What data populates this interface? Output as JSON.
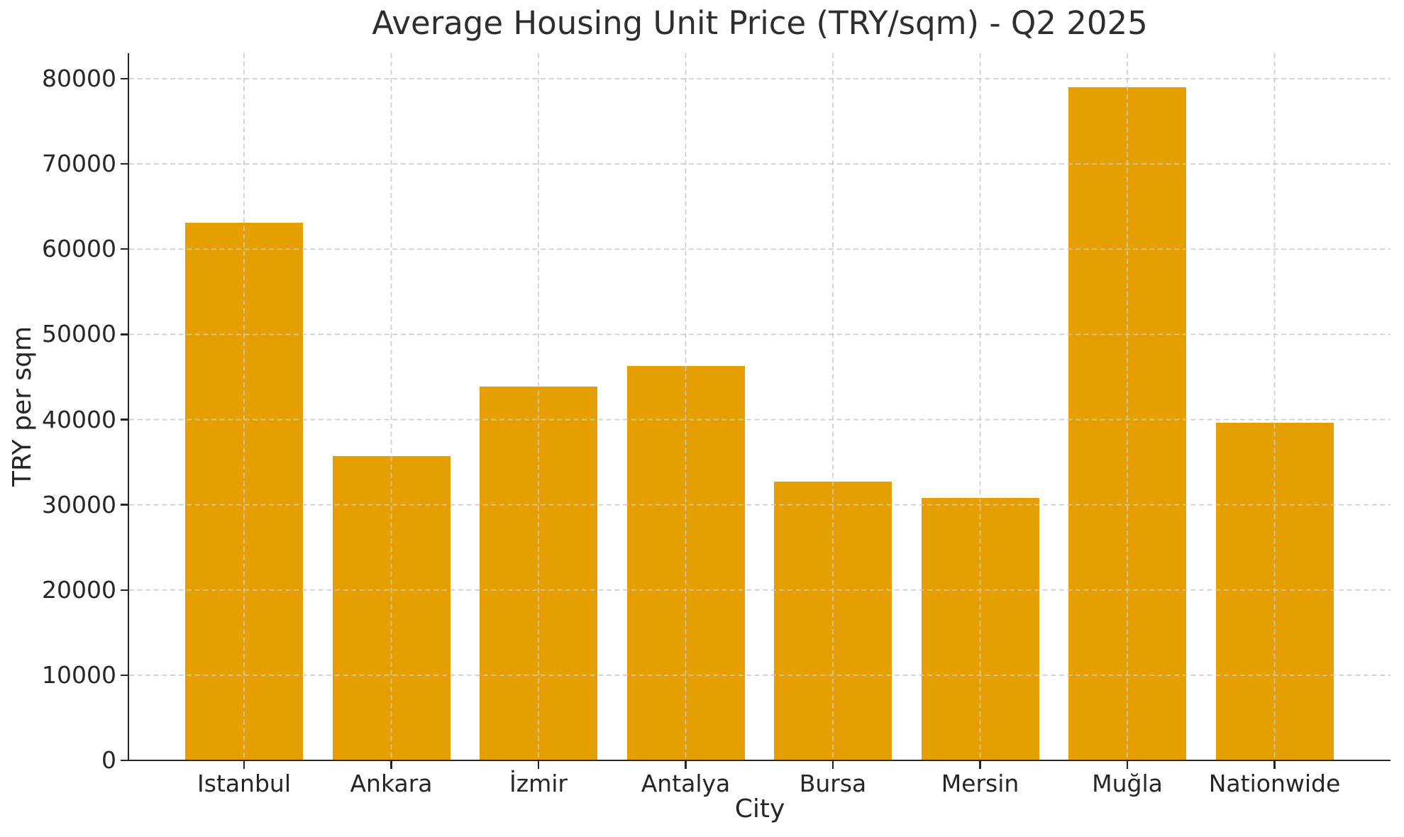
{
  "chart_data": {
    "type": "bar",
    "title": "Average Housing Unit Price (TRY/sqm) - Q2 2025",
    "xlabel": "City",
    "ylabel": "TRY per sqm",
    "categories": [
      "Istanbul",
      "Ankara",
      "İzmir",
      "Antalya",
      "Bursa",
      "Mersin",
      "Muğla",
      "Nationwide"
    ],
    "values": [
      63100,
      35700,
      43900,
      46300,
      32700,
      30800,
      79000,
      39600
    ],
    "ylim": [
      0,
      83000
    ],
    "yticks": [
      0,
      10000,
      20000,
      30000,
      40000,
      50000,
      60000,
      70000,
      80000
    ],
    "bar_color": "#E69F00",
    "grid": "dashed gray, horizontal and vertical",
    "legend_position": "none"
  }
}
